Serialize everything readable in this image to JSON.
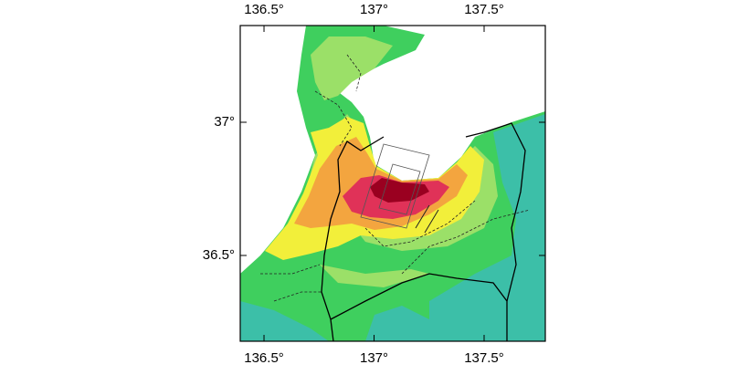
{
  "axes": {
    "xlim": [
      136.392,
      137.778
    ],
    "ylim": [
      36.178,
      37.363
    ],
    "x_ticks": [
      {
        "value": 136.5,
        "label": "136.5°"
      },
      {
        "value": 137,
        "label": "137°"
      },
      {
        "value": 137.5,
        "label": "137.5°"
      }
    ],
    "y_ticks": [
      {
        "value": 37,
        "label": "37°"
      },
      {
        "value": 36.5,
        "label": "36.5°"
      }
    ]
  }
}
